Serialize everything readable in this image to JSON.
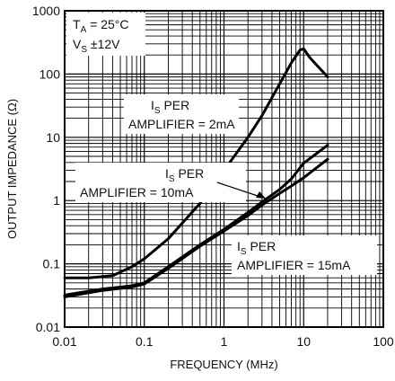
{
  "chart_data": {
    "type": "line",
    "xlabel": "FREQUENCY (MHz)",
    "ylabel": "OUTPUT IMPEDANCE (Ω)",
    "x_scale": "log",
    "y_scale": "log",
    "xlim": [
      0.01,
      100
    ],
    "ylim": [
      0.01,
      1000
    ],
    "x_ticks": [
      "0.01",
      "0.1",
      "1",
      "10",
      "100"
    ],
    "y_ticks": [
      "1000",
      "100",
      "10",
      "1",
      "0.1",
      "0.01"
    ],
    "grid": true,
    "conditions": {
      "line1_main": "T",
      "line1_sub": "A",
      "line1_rest": " = 25°C",
      "line2_main": "V",
      "line2_sub": "S",
      "line2_rest": " ±12V"
    },
    "series": [
      {
        "label_main": "I",
        "label_sub": "S",
        "label_line1": " PER",
        "label_line2": "AMPLIFIER = 2mA",
        "x": [
          0.01,
          0.02,
          0.04,
          0.07,
          0.1,
          0.2,
          0.5,
          1,
          2,
          3,
          5,
          7,
          9,
          10,
          12,
          20
        ],
        "y": [
          0.06,
          0.06,
          0.065,
          0.09,
          0.12,
          0.25,
          0.9,
          3,
          10,
          22,
          70,
          150,
          240,
          250,
          180,
          90
        ]
      },
      {
        "label_main": "I",
        "label_sub": "S",
        "label_line1": " PER",
        "label_line2": "AMPLIFIER = 10mA",
        "x": [
          0.01,
          0.03,
          0.07,
          0.1,
          0.2,
          0.5,
          1,
          2,
          3,
          5,
          7,
          10,
          20
        ],
        "y": [
          0.032,
          0.04,
          0.045,
          0.05,
          0.09,
          0.2,
          0.35,
          0.65,
          0.95,
          1.5,
          2.2,
          3.9,
          7.5
        ]
      },
      {
        "label_main": "I",
        "label_sub": "S",
        "label_line1": " PER",
        "label_line2": "AMPLIFIER = 15mA",
        "x": [
          0.01,
          0.03,
          0.07,
          0.1,
          0.2,
          0.5,
          1,
          2,
          3,
          5,
          7,
          10,
          20
        ],
        "y": [
          0.03,
          0.038,
          0.043,
          0.048,
          0.085,
          0.19,
          0.33,
          0.58,
          0.85,
          1.3,
          1.7,
          2.3,
          4.5
        ]
      }
    ]
  }
}
